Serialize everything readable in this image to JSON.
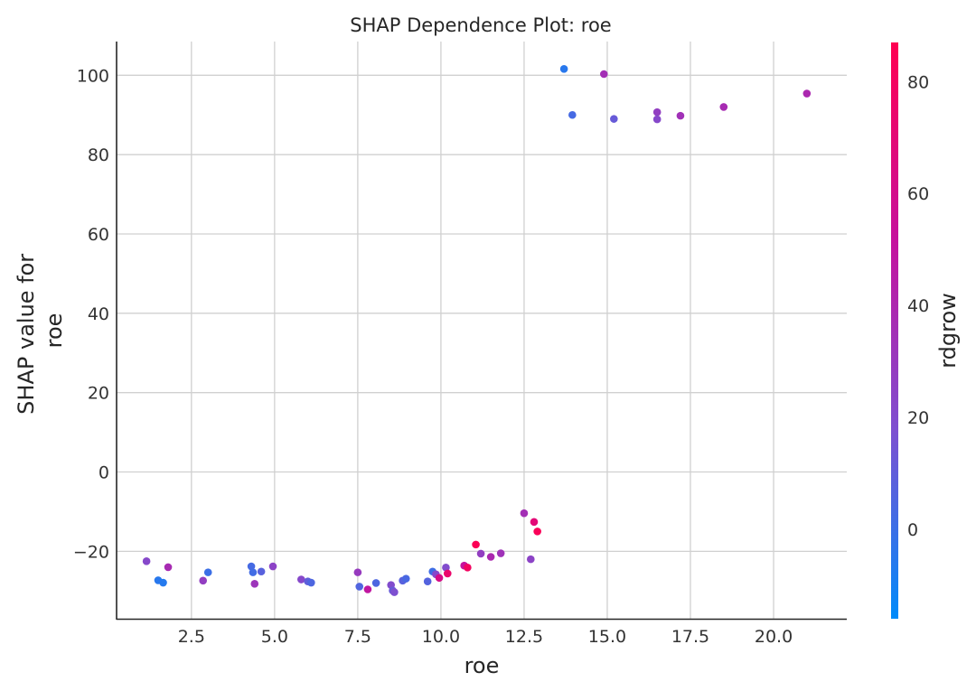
{
  "chart_data": {
    "type": "scatter",
    "title": "SHAP Dependence Plot: roe",
    "xlabel": "roe",
    "ylabel_lines": [
      "SHAP value for",
      "roe"
    ],
    "xlim": [
      0.25,
      22.2
    ],
    "ylim": [
      -37,
      108.5
    ],
    "xticks": [
      2.5,
      5.0,
      7.5,
      10.0,
      12.5,
      15.0,
      17.5,
      20.0
    ],
    "xtick_labels": [
      "2.5",
      "5.0",
      "7.5",
      "10.0",
      "12.5",
      "15.0",
      "17.5",
      "20.0"
    ],
    "yticks": [
      -20,
      0,
      20,
      40,
      60,
      80,
      100
    ],
    "ytick_labels": [
      "−20",
      "0",
      "20",
      "40",
      "60",
      "80",
      "100"
    ],
    "grid": true,
    "colorbar": {
      "label": "rdgrow",
      "range": [
        -16,
        87
      ],
      "ticks": [
        0,
        20,
        40,
        60,
        80
      ],
      "tick_labels": [
        "0",
        "20",
        "40",
        "60",
        "80"
      ],
      "colormap": [
        "#008bfa",
        "#7e4fd0",
        "#c6119c",
        "#ff0051"
      ]
    },
    "points": [
      {
        "x": 1.15,
        "y": -22.5,
        "c": 22
      },
      {
        "x": 1.5,
        "y": -27.3,
        "c": -5
      },
      {
        "x": 1.65,
        "y": -27.9,
        "c": -6
      },
      {
        "x": 1.8,
        "y": -24.0,
        "c": 38
      },
      {
        "x": 2.85,
        "y": -27.4,
        "c": 28
      },
      {
        "x": 3.0,
        "y": -25.3,
        "c": 0
      },
      {
        "x": 4.3,
        "y": -23.8,
        "c": 3
      },
      {
        "x": 4.35,
        "y": -25.3,
        "c": 2
      },
      {
        "x": 4.4,
        "y": -28.2,
        "c": 33
      },
      {
        "x": 4.6,
        "y": -25.1,
        "c": 8
      },
      {
        "x": 4.95,
        "y": -23.8,
        "c": 25
      },
      {
        "x": 5.8,
        "y": -27.1,
        "c": 22
      },
      {
        "x": 6.0,
        "y": -27.6,
        "c": 10
      },
      {
        "x": 6.1,
        "y": -27.9,
        "c": 5
      },
      {
        "x": 7.5,
        "y": -25.3,
        "c": 30
      },
      {
        "x": 7.55,
        "y": -28.9,
        "c": 6
      },
      {
        "x": 7.8,
        "y": -29.6,
        "c": 50
      },
      {
        "x": 8.05,
        "y": -28.0,
        "c": 5
      },
      {
        "x": 8.5,
        "y": -28.5,
        "c": 20
      },
      {
        "x": 8.55,
        "y": -29.9,
        "c": 12
      },
      {
        "x": 8.6,
        "y": -30.3,
        "c": 18
      },
      {
        "x": 8.85,
        "y": -27.4,
        "c": 8
      },
      {
        "x": 8.95,
        "y": -26.9,
        "c": 4
      },
      {
        "x": 9.6,
        "y": -27.6,
        "c": 7
      },
      {
        "x": 9.75,
        "y": -25.1,
        "c": 1
      },
      {
        "x": 9.85,
        "y": -25.8,
        "c": 22
      },
      {
        "x": 9.95,
        "y": -26.7,
        "c": 62
      },
      {
        "x": 10.15,
        "y": -24.1,
        "c": 20
      },
      {
        "x": 10.2,
        "y": -25.6,
        "c": 75
      },
      {
        "x": 10.7,
        "y": -23.6,
        "c": 52
      },
      {
        "x": 10.8,
        "y": -24.1,
        "c": 80
      },
      {
        "x": 11.05,
        "y": -18.3,
        "c": 85
      },
      {
        "x": 11.2,
        "y": -20.6,
        "c": 28
      },
      {
        "x": 11.5,
        "y": -21.4,
        "c": 40
      },
      {
        "x": 11.8,
        "y": -20.5,
        "c": 34
      },
      {
        "x": 12.5,
        "y": -10.4,
        "c": 36
      },
      {
        "x": 12.7,
        "y": -22.0,
        "c": 25
      },
      {
        "x": 12.8,
        "y": -12.6,
        "c": 70
      },
      {
        "x": 12.9,
        "y": -15.0,
        "c": 84
      },
      {
        "x": 13.7,
        "y": 101.6,
        "c": -5
      },
      {
        "x": 13.95,
        "y": 90.0,
        "c": 3
      },
      {
        "x": 14.9,
        "y": 100.3,
        "c": 36
      },
      {
        "x": 15.2,
        "y": 89.0,
        "c": 12
      },
      {
        "x": 16.5,
        "y": 90.7,
        "c": 28
      },
      {
        "x": 16.5,
        "y": 88.9,
        "c": 22
      },
      {
        "x": 17.2,
        "y": 89.8,
        "c": 35
      },
      {
        "x": 18.5,
        "y": 92.0,
        "c": 38
      },
      {
        "x": 21.0,
        "y": 95.4,
        "c": 40
      }
    ]
  }
}
